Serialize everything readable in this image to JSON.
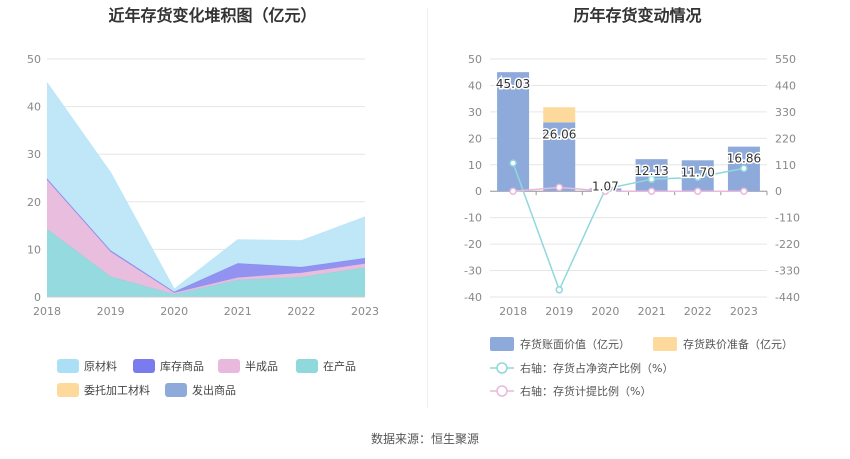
{
  "titles": {
    "left": "近年存货变化堆积图（亿元）",
    "right": "历年存货变动情况"
  },
  "source": "数据来源：恒生聚源",
  "chart_data": [
    {
      "type": "area",
      "title": "近年存货变化堆积图（亿元）",
      "x": [
        "2018",
        "2019",
        "2020",
        "2021",
        "2022",
        "2023"
      ],
      "ylim": [
        0,
        50
      ],
      "yticks": [
        0,
        10,
        20,
        30,
        40,
        50
      ],
      "stacked": true,
      "grid": true,
      "legend_position": "bottom",
      "series": [
        {
          "name": "在产品",
          "color": "#8fd8dc",
          "values": [
            14.3,
            4.3,
            0.6,
            3.6,
            4.2,
            6.2
          ]
        },
        {
          "name": "半成品",
          "color": "#e8b9dc",
          "values": [
            10.3,
            5.2,
            0.3,
            0.5,
            0.9,
            0.8
          ]
        },
        {
          "name": "库存商品",
          "color": "#8c8cf0",
          "values": [
            0.3,
            0.3,
            0.2,
            3.0,
            1.2,
            1.2
          ]
        },
        {
          "name": "原材料",
          "color": "#bde6f8",
          "values": [
            20.1,
            16.3,
            0.5,
            4.9,
            5.5,
            8.6
          ]
        },
        {
          "name": "委托加工材料",
          "color": "#fdd99b",
          "values": [
            0,
            0,
            0,
            0,
            0,
            0
          ]
        },
        {
          "name": "发出商品",
          "color": "#8eaadb",
          "values": [
            0,
            0,
            0,
            0,
            0,
            0
          ]
        }
      ],
      "legend_order": [
        "原材料",
        "库存商品",
        "半成品",
        "在产品",
        "委托加工材料",
        "发出商品"
      ],
      "legend_colors": {
        "原材料": "#aadff5",
        "库存商品": "#7b7bf0",
        "半成品": "#e8b9dc",
        "在产品": "#8fd8dc",
        "委托加工材料": "#fdd99b",
        "发出商品": "#8eaadb"
      }
    },
    {
      "type": "bar",
      "title": "历年存货变动情况",
      "categories": [
        "2018",
        "2019",
        "2020",
        "2021",
        "2022",
        "2023"
      ],
      "ylim": [
        -40,
        50
      ],
      "yticks": [
        -40,
        -30,
        -20,
        -10,
        0,
        10,
        20,
        30,
        40,
        50
      ],
      "y2lim": [
        -440,
        550
      ],
      "y2ticks": [
        -440,
        -330,
        -220,
        -110,
        0,
        110,
        220,
        330,
        440,
        550
      ],
      "grid": true,
      "legend_position": "bottom",
      "bar_series": [
        {
          "name": "存货账面价值（亿元）",
          "color": "#8eaadb",
          "values": [
            45.03,
            26.06,
            1.07,
            12.13,
            11.7,
            16.86
          ],
          "labels": [
            "45.03",
            "26.06",
            "1.07",
            "12.13",
            "11.70",
            "16.86"
          ]
        },
        {
          "name": "存货跌价准备（亿元）",
          "color": "#fdd99b",
          "values": [
            0,
            5.7,
            0,
            0,
            0,
            0
          ]
        }
      ],
      "line_series": [
        {
          "name": "右轴：存货占净资产比例（%）",
          "color": "#8fd8dc",
          "axis": "right",
          "values": [
            117,
            -410,
            9,
            50,
            58,
            95
          ]
        },
        {
          "name": "右轴：存货计提比例（%）",
          "color": "#e8b9dc",
          "axis": "right",
          "values": [
            0,
            16,
            0,
            0,
            0,
            0
          ]
        }
      ]
    }
  ]
}
